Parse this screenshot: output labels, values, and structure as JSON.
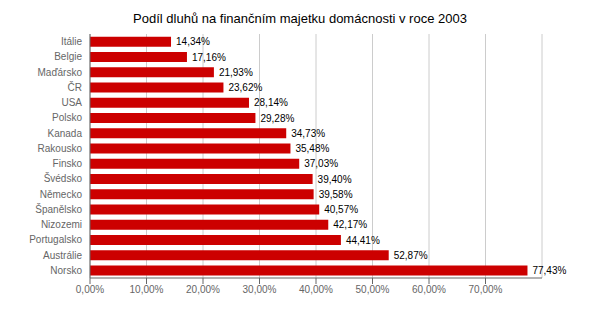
{
  "chart_data": {
    "type": "bar",
    "orientation": "horizontal",
    "title": "Podíl dluhů na financ̆ním majetku domácnosti v roce 2003",
    "categories": [
      "Norsko",
      "Austrálie",
      "Portugalsko",
      "Nizozemi",
      "Španělsko",
      "Německo",
      "Švédsko",
      "Finsko",
      "Rakousko",
      "Kanada",
      "Polsko",
      "USA",
      "ČR",
      "Maďársko",
      "Belgie",
      "Itálie"
    ],
    "values": [
      77.43,
      52.87,
      44.41,
      42.17,
      40.57,
      39.58,
      39.4,
      37.03,
      35.48,
      34.73,
      29.28,
      28.14,
      23.62,
      21.93,
      17.16,
      14.34
    ],
    "value_labels": [
      "77,43%",
      "52,87%",
      "44,41%",
      "42,17%",
      "40,57%",
      "39,58%",
      "39,40%",
      "37,03%",
      "35,48%",
      "34,73%",
      "29,28%",
      "28,14%",
      "23,62%",
      "21,93%",
      "17,16%",
      "14,34%"
    ],
    "data_labels": true,
    "color": "#cc0000",
    "xlim": [
      0,
      80
    ],
    "xticks": [
      {
        "value": 0,
        "label": "0,00%"
      },
      {
        "value": 10,
        "label": "10,00%"
      },
      {
        "value": 20,
        "label": "20,00%"
      },
      {
        "value": 30,
        "label": "30,00%"
      },
      {
        "value": 40,
        "label": "40,00%"
      },
      {
        "value": 50,
        "label": "50,00%"
      },
      {
        "value": 60,
        "label": "60,00%"
      },
      {
        "value": 70,
        "label": "70,00%"
      }
    ],
    "grid": true
  }
}
